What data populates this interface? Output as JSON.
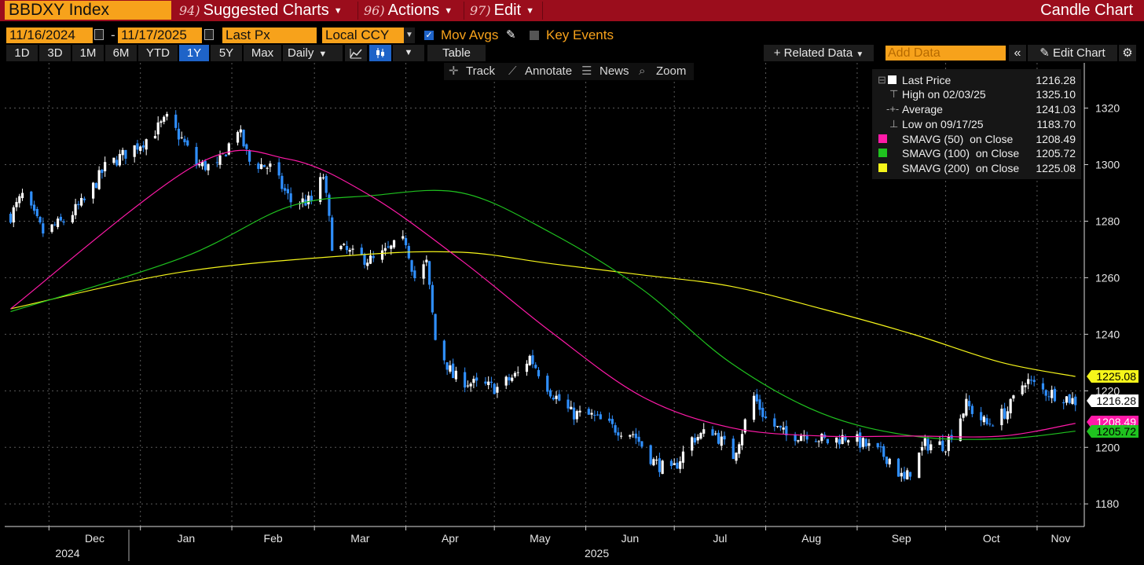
{
  "header": {
    "ticker": "BBDXY Index",
    "menu": [
      {
        "num": "94)",
        "label": "Suggested Charts",
        "caret": true
      },
      {
        "num": "96)",
        "label": "Actions",
        "caret": true
      },
      {
        "num": "97)",
        "label": "Edit",
        "caret": true
      }
    ],
    "title": "Candle Chart"
  },
  "settings": {
    "start_date": "11/16/2024",
    "date_sep": "-",
    "end_date": "11/17/2025",
    "price_field": "Last Px",
    "currency": "Local CCY",
    "mov_avgs_label": "Mov Avgs",
    "mov_avgs_checked": true,
    "key_events_label": "Key Events",
    "key_events_checked": false
  },
  "range_bar": {
    "ranges": [
      "1D",
      "3D",
      "1M",
      "6M",
      "YTD",
      "1Y",
      "5Y",
      "Max"
    ],
    "active_range": "1Y",
    "frequency": "Daily",
    "table_label": "Table",
    "related_data": "Related Data",
    "add_data_placeholder": "Add Data",
    "edit_chart": "Edit Chart"
  },
  "toolbar": {
    "track": "Track",
    "annotate": "Annotate",
    "news": "News",
    "zoom": "Zoom"
  },
  "legend": [
    {
      "label": "Last Price",
      "value": "1216.28",
      "color": "#ffffff",
      "glyph": ""
    },
    {
      "label": "High on 02/03/25",
      "value": "1325.10",
      "color": "",
      "glyph": "high"
    },
    {
      "label": "Average",
      "value": "1241.03",
      "color": "",
      "glyph": "avg"
    },
    {
      "label": "Low on 09/17/25",
      "value": "1183.70",
      "color": "",
      "glyph": "low"
    },
    {
      "label": "SMAVG (50)  on Close",
      "value": "1208.49",
      "color": "#ff1aa8",
      "glyph": ""
    },
    {
      "label": "SMAVG (100)  on Close",
      "value": "1205.72",
      "color": "#1fc21f",
      "glyph": ""
    },
    {
      "label": "SMAVG (200)  on Close",
      "value": "1225.08",
      "color": "#f5f51a",
      "glyph": ""
    }
  ],
  "colors": {
    "bull": "#ffffff",
    "bear": "#2f8fff",
    "sma50": "#ff1aa8",
    "sma100": "#1fc21f",
    "sma200": "#f5f51a",
    "grid": "#5a5a5a",
    "accent": "#f7a21b",
    "header_bg": "#9b0d1c"
  },
  "chart_data": {
    "type": "candlestick",
    "y_ticks": [
      1180,
      1200,
      1220,
      1240,
      1260,
      1280,
      1300,
      1320
    ],
    "ylim": [
      1172,
      1336
    ],
    "x_months": [
      {
        "label": "Dec",
        "date": "2024-12-01"
      },
      {
        "label": "Jan",
        "date": "2025-01-01"
      },
      {
        "label": "Feb",
        "date": "2025-02-01"
      },
      {
        "label": "Mar",
        "date": "2025-03-01"
      },
      {
        "label": "Apr",
        "date": "2025-04-01"
      },
      {
        "label": "May",
        "date": "2025-05-01"
      },
      {
        "label": "Jun",
        "date": "2025-06-01"
      },
      {
        "label": "Jul",
        "date": "2025-07-01"
      },
      {
        "label": "Aug",
        "date": "2025-08-01"
      },
      {
        "label": "Sep",
        "date": "2025-09-01"
      },
      {
        "label": "Oct",
        "date": "2025-10-01"
      },
      {
        "label": "Nov",
        "date": "2025-11-01"
      }
    ],
    "x_years": [
      {
        "label": "2024",
        "date": "2024-12-01"
      },
      {
        "label": "2025",
        "date": "2025-06-01"
      }
    ],
    "xlim": [
      "2024-11-16",
      "2025-11-17"
    ],
    "close_series": [
      [
        "2024-11-18",
        1282
      ],
      [
        "2024-11-22",
        1289
      ],
      [
        "2024-11-29",
        1276
      ],
      [
        "2024-12-06",
        1280
      ],
      [
        "2024-12-13",
        1287
      ],
      [
        "2024-12-20",
        1299
      ],
      [
        "2024-12-27",
        1304
      ],
      [
        "2025-01-03",
        1309
      ],
      [
        "2025-01-10",
        1316
      ],
      [
        "2025-01-15",
        1309
      ],
      [
        "2025-01-20",
        1300
      ],
      [
        "2025-01-27",
        1299
      ],
      [
        "2025-02-03",
        1313
      ],
      [
        "2025-02-07",
        1301
      ],
      [
        "2025-02-14",
        1299
      ],
      [
        "2025-02-21",
        1287
      ],
      [
        "2025-02-28",
        1287
      ],
      [
        "2025-03-04",
        1296
      ],
      [
        "2025-03-07",
        1272
      ],
      [
        "2025-03-14",
        1268
      ],
      [
        "2025-03-21",
        1266
      ],
      [
        "2025-03-28",
        1271
      ],
      [
        "2025-04-01",
        1273
      ],
      [
        "2025-04-04",
        1260
      ],
      [
        "2025-04-08",
        1265
      ],
      [
        "2025-04-11",
        1238
      ],
      [
        "2025-04-17",
        1225
      ],
      [
        "2025-04-25",
        1222
      ],
      [
        "2025-05-02",
        1221
      ],
      [
        "2025-05-09",
        1226
      ],
      [
        "2025-05-13",
        1232
      ],
      [
        "2025-05-20",
        1220
      ],
      [
        "2025-05-27",
        1212
      ],
      [
        "2025-06-03",
        1211
      ],
      [
        "2025-06-10",
        1207
      ],
      [
        "2025-06-17",
        1205
      ],
      [
        "2025-06-24",
        1195
      ],
      [
        "2025-06-30",
        1191
      ],
      [
        "2025-07-07",
        1203
      ],
      [
        "2025-07-14",
        1206
      ],
      [
        "2025-07-21",
        1197
      ],
      [
        "2025-07-28",
        1218
      ],
      [
        "2025-08-01",
        1210
      ],
      [
        "2025-08-08",
        1204
      ],
      [
        "2025-08-15",
        1205
      ],
      [
        "2025-08-22",
        1202
      ],
      [
        "2025-08-29",
        1204
      ],
      [
        "2025-09-05",
        1200
      ],
      [
        "2025-09-12",
        1196
      ],
      [
        "2025-09-17",
        1188
      ],
      [
        "2025-09-24",
        1201
      ],
      [
        "2025-10-01",
        1201
      ],
      [
        "2025-10-08",
        1215
      ],
      [
        "2025-10-15",
        1208
      ],
      [
        "2025-10-22",
        1213
      ],
      [
        "2025-10-28",
        1224
      ],
      [
        "2025-11-03",
        1220
      ],
      [
        "2025-11-10",
        1218
      ],
      [
        "2025-11-14",
        1216.28
      ]
    ],
    "sma50": [
      [
        "2024-11-18",
        1249
      ],
      [
        "2025-01-20",
        1300
      ],
      [
        "2025-02-20",
        1302
      ],
      [
        "2025-03-20",
        1289
      ],
      [
        "2025-04-20",
        1266
      ],
      [
        "2025-05-20",
        1241
      ],
      [
        "2025-06-20",
        1218
      ],
      [
        "2025-07-20",
        1207
      ],
      [
        "2025-08-20",
        1204
      ],
      [
        "2025-09-20",
        1204
      ],
      [
        "2025-10-20",
        1204
      ],
      [
        "2025-11-14",
        1208.49
      ]
    ],
    "sma100": [
      [
        "2024-11-18",
        1248
      ],
      [
        "2025-01-15",
        1267
      ],
      [
        "2025-02-20",
        1285
      ],
      [
        "2025-03-20",
        1289
      ],
      [
        "2025-04-20",
        1290
      ],
      [
        "2025-05-20",
        1276
      ],
      [
        "2025-06-20",
        1256
      ],
      [
        "2025-07-20",
        1230
      ],
      [
        "2025-08-20",
        1212
      ],
      [
        "2025-09-20",
        1204
      ],
      [
        "2025-10-20",
        1203
      ],
      [
        "2025-11-14",
        1205.72
      ]
    ],
    "sma200": [
      [
        "2024-11-18",
        1249
      ],
      [
        "2025-01-15",
        1262
      ],
      [
        "2025-03-15",
        1268
      ],
      [
        "2025-04-20",
        1269
      ],
      [
        "2025-05-20",
        1265
      ],
      [
        "2025-06-20",
        1261
      ],
      [
        "2025-07-20",
        1257
      ],
      [
        "2025-08-20",
        1249
      ],
      [
        "2025-09-20",
        1240
      ],
      [
        "2025-10-20",
        1230
      ],
      [
        "2025-11-14",
        1225.08
      ]
    ],
    "price_tags": [
      {
        "value": "1225.08",
        "bg": "#f5f51a",
        "fg": "#000000",
        "y": 1225.08
      },
      {
        "value": "1216.28",
        "bg": "#ffffff",
        "fg": "#000000",
        "y": 1216.28
      },
      {
        "value": "1208.49",
        "bg": "#ff1aa8",
        "fg": "#ffffff",
        "y": 1208.49
      },
      {
        "value": "1205.72",
        "bg": "#1fc21f",
        "fg": "#000000",
        "y": 1205.72
      }
    ]
  }
}
